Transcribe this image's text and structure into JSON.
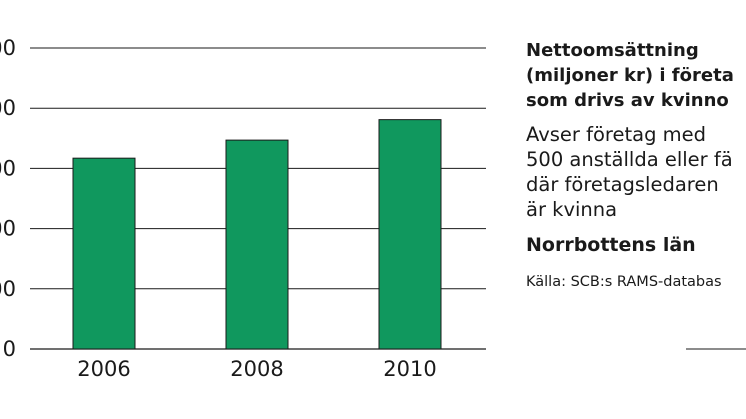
{
  "chart_data": {
    "type": "bar",
    "categories": [
      "2006",
      "2008",
      "2010"
    ],
    "values": [
      317,
      347,
      381
    ],
    "y_tick_labels": [
      "0",
      "00",
      "00",
      "00",
      "00",
      "00"
    ],
    "y_tick_values": [
      0,
      100,
      200,
      300,
      400,
      500
    ],
    "ylim": [
      0,
      500
    ],
    "grid": true,
    "bar_color": "#10985e",
    "title_lines": [
      "Nettoomsättning",
      "(miljoner kr) i företa",
      "som drivs av kvinno"
    ],
    "subtitle_lines": [
      "Avser företag med",
      "500 anställda eller fä",
      "där företagsledaren",
      "är kvinna"
    ],
    "region": "Norrbottens län",
    "source": "Källa: SCB:s RAMS-databas"
  }
}
